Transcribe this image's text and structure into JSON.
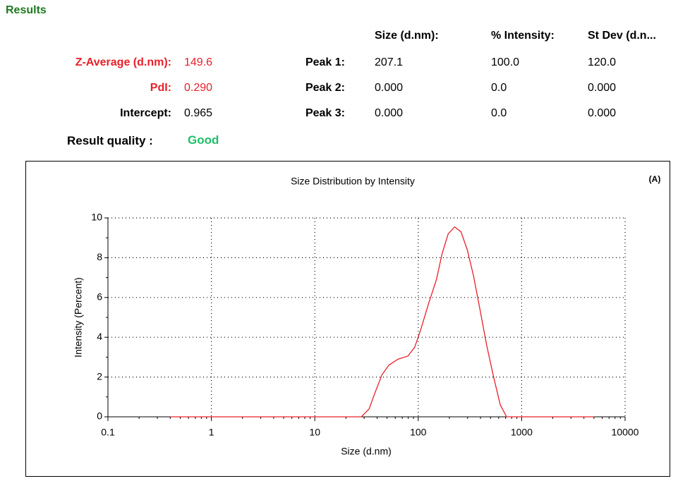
{
  "results": {
    "title": "Results",
    "summary": [
      {
        "label": "Z-Average (d.nm):",
        "value": "149.6"
      },
      {
        "label": "PdI:",
        "value": "0.290"
      },
      {
        "label": "Intercept:",
        "value": "0.965"
      }
    ],
    "quality": {
      "label": "Result quality :",
      "value": "Good"
    },
    "peaks": {
      "headers": [
        "Size (d.nm):",
        "% Intensity:",
        "St Dev (d.n..."
      ],
      "rows": [
        {
          "label": "Peak 1:",
          "cells": [
            "207.1",
            "100.0",
            "120.0"
          ]
        },
        {
          "label": "Peak 2:",
          "cells": [
            "0.000",
            "0.0",
            "0.000"
          ]
        },
        {
          "label": "Peak 3:",
          "cells": [
            "0.000",
            "0.0",
            "0.000"
          ]
        }
      ]
    }
  },
  "chart_data": {
    "type": "line",
    "title": "Size Distribution by Intensity",
    "annotation": "(A)",
    "x_label": "Size (d.nm)",
    "y_label": "Intensity (Percent)",
    "x": [
      0.4,
      1,
      10,
      28.2,
      33.5,
      38.1,
      44.5,
      52,
      63.8,
      79.3,
      92.4,
      106,
      126,
      150,
      170,
      195,
      225,
      259,
      298,
      342,
      395,
      459,
      530,
      621,
      715,
      1000,
      5000
    ],
    "values": [
      0,
      0,
      0,
      0,
      0.4,
      1.2,
      2.1,
      2.6,
      2.9,
      3.05,
      3.5,
      4.4,
      5.7,
      6.9,
      8.2,
      9.2,
      9.55,
      9.3,
      8.4,
      7.1,
      5.4,
      3.6,
      2.1,
      0.6,
      0,
      0,
      0
    ],
    "color": "#e8202a",
    "xlim": [
      0.1,
      10000
    ],
    "xticks": [
      0.1,
      1,
      10,
      100,
      1000,
      10000
    ],
    "x_scale": "log",
    "ylim": [
      0,
      10
    ],
    "yticks": [
      0,
      2,
      4,
      6,
      8,
      10
    ],
    "grid": true
  }
}
